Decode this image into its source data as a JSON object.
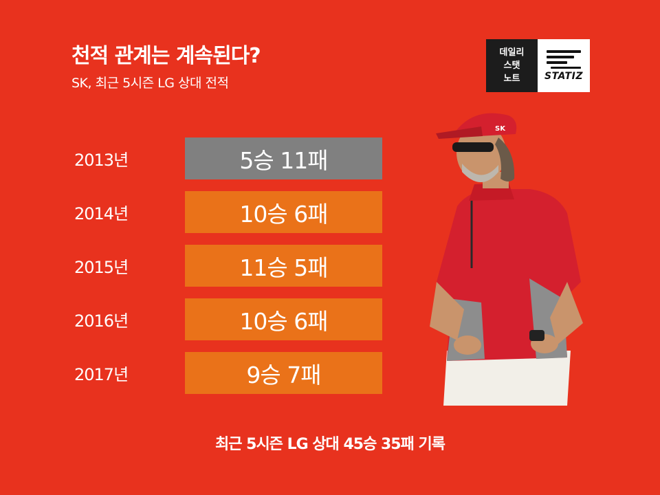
{
  "header": {
    "title": "천적 관계는 계속된다?",
    "subtitle": "SK, 최근 5시즌 LG 상대 전적"
  },
  "logo": {
    "left_lines": [
      "데일리",
      "스탯",
      "노트"
    ],
    "right_text": "STATIZ"
  },
  "records": [
    {
      "year": "2013년",
      "result": "5승 11패",
      "wins": 5,
      "losses": 11
    },
    {
      "year": "2014년",
      "result": "10승 6패",
      "wins": 10,
      "losses": 6
    },
    {
      "year": "2015년",
      "result": "11승 5패",
      "wins": 11,
      "losses": 5
    },
    {
      "year": "2016년",
      "result": "10승 6패",
      "wins": 10,
      "losses": 6
    },
    {
      "year": "2017년",
      "result": "9승 7패",
      "wins": 9,
      "losses": 7
    }
  ],
  "footer": {
    "text": "최근 5시즌 LG 상대 45승 35패 기록"
  },
  "colors": {
    "background": "#e8321e",
    "losing_record_bar": "#808080",
    "winning_record_bar": "#ea7219"
  }
}
